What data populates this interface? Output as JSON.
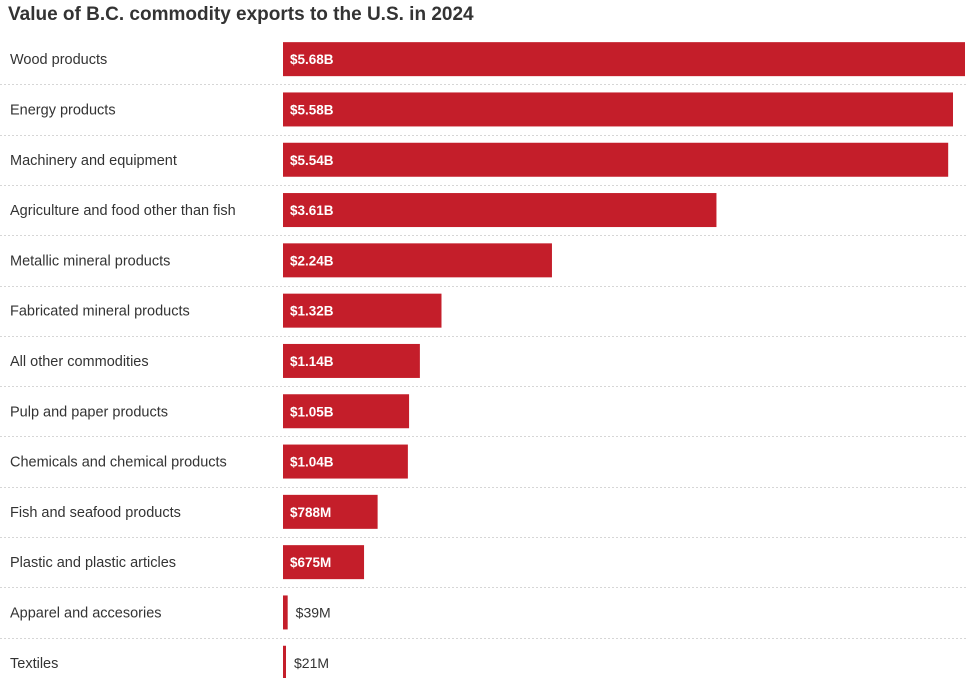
{
  "chart_data": {
    "type": "bar",
    "orientation": "horizontal",
    "title": "Value of B.C. commodity exports to the U.S. in 2024",
    "xlabel": "",
    "ylabel": "",
    "unit": "USD billions",
    "color": "#c41e2a",
    "categories": [
      "Wood products",
      "Energy products",
      "Machinery and equipment",
      "Agriculture and food other than fish",
      "Metallic mineral products",
      "Fabricated mineral products",
      "All other commodities",
      "Pulp and paper products",
      "Chemicals and chemical products",
      "Fish and seafood products",
      "Plastic and plastic articles",
      "Apparel and accesories",
      "Textiles"
    ],
    "values": [
      5.68,
      5.58,
      5.54,
      3.61,
      2.24,
      1.32,
      1.14,
      1.05,
      1.04,
      0.788,
      0.675,
      0.039,
      0.021
    ],
    "value_labels": [
      "$5.68B",
      "$5.58B",
      "$5.54B",
      "$3.61B",
      "$2.24B",
      "$1.32B",
      "$1.14B",
      "$1.05B",
      "$1.04B",
      "$788M",
      "$675M",
      "$39M",
      "$21M"
    ],
    "xlim": [
      0,
      5.68
    ],
    "grid": false,
    "legend": "none"
  }
}
